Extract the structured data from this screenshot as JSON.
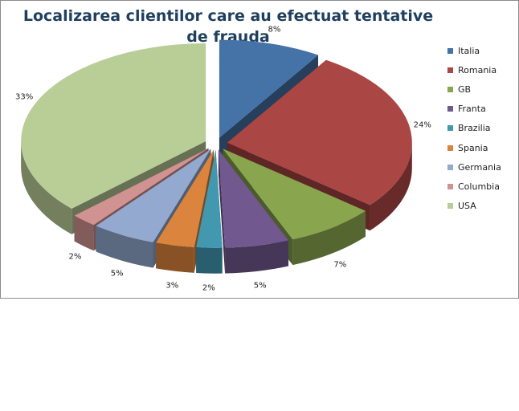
{
  "chart_data": {
    "type": "pie",
    "title": "Localizarea clientilor care au efectuat tentative de frauda",
    "categories": [
      "Italia",
      "Romania",
      "GB",
      "Franta",
      "Brazilia",
      "Spania",
      "Germania",
      "Columbia",
      "USA"
    ],
    "values": [
      8,
      24,
      7,
      5,
      2,
      3,
      5,
      2,
      33
    ],
    "value_labels": [
      "8%",
      "24%",
      "7%",
      "5%",
      "2%",
      "3%",
      "5%",
      "2%",
      "33%"
    ],
    "colors": [
      "#4572A7",
      "#AA4643",
      "#89A54E",
      "#71588F",
      "#4198AF",
      "#DB843D",
      "#93A9CF",
      "#D19392",
      "#B9CD96"
    ],
    "style": "3d-exploded",
    "legend_position": "right"
  }
}
